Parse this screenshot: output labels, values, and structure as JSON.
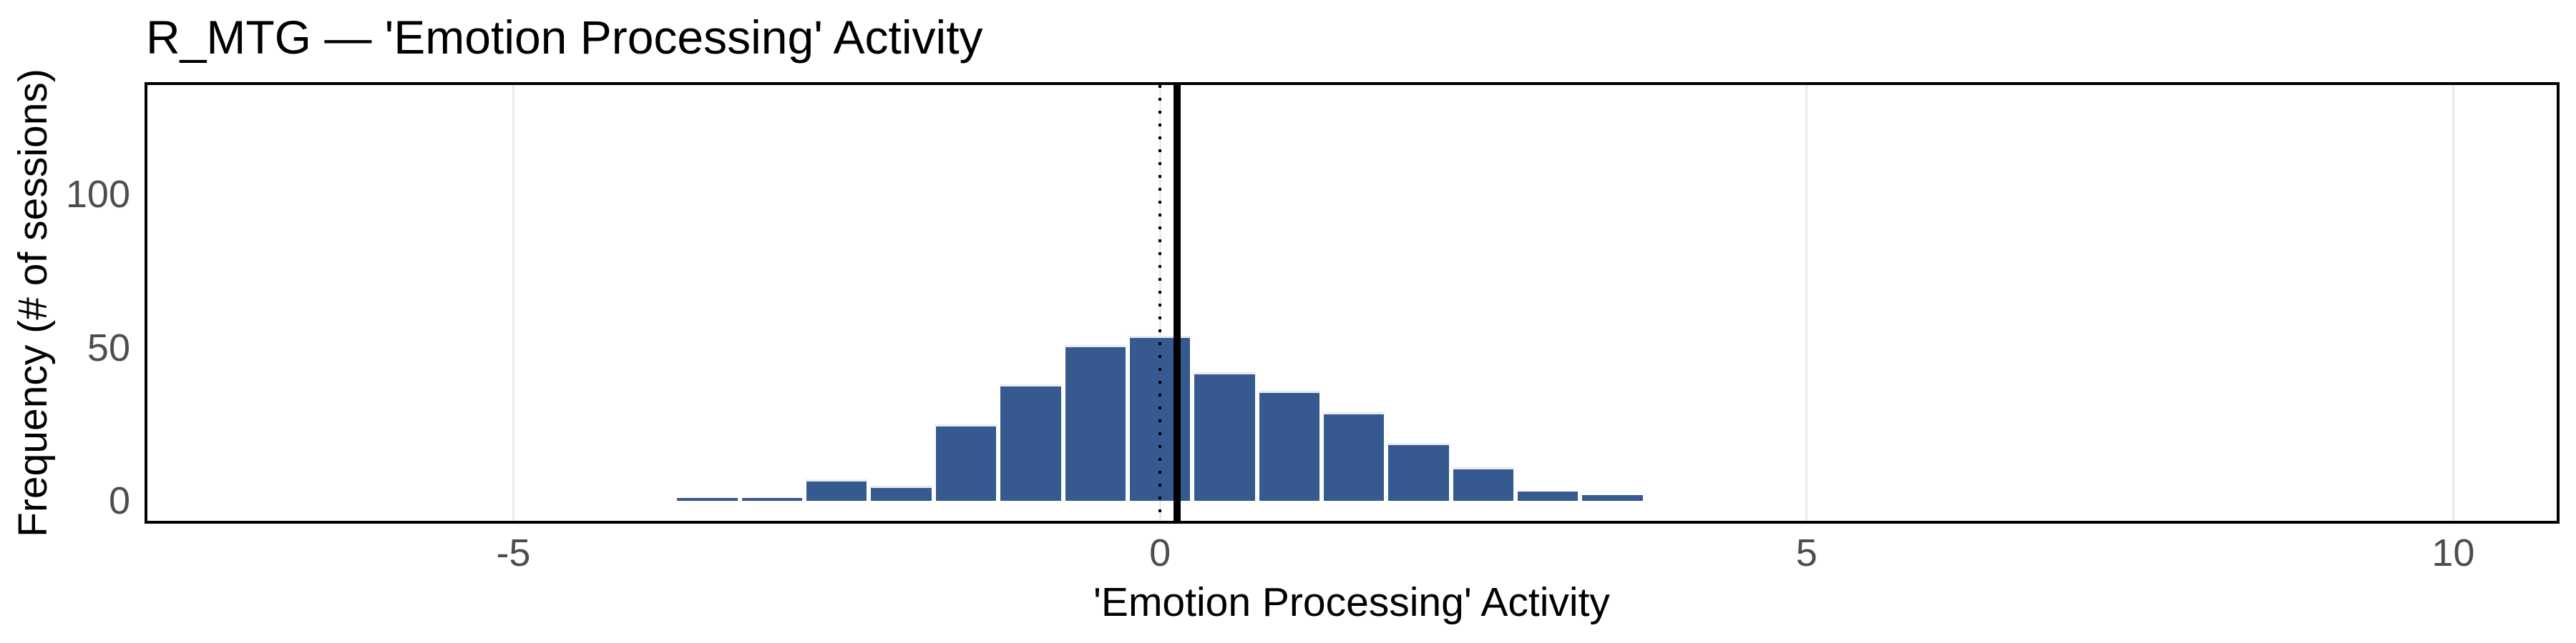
{
  "title": "R_MTG — 'Emotion Processing' Activity",
  "chart_data": {
    "type": "bar",
    "subtype": "histogram",
    "title": "R_MTG — 'Emotion Processing' Activity",
    "xlabel": "'Emotion Processing' Activity",
    "ylabel": "Frequency (# of sessions)",
    "bin_width": 0.5,
    "bin_centers": [
      -3.5,
      -3.0,
      -2.5,
      -2.0,
      -1.5,
      -1.0,
      -0.5,
      0.0,
      0.5,
      1.0,
      1.5,
      2.0,
      2.5,
      3.0,
      3.5
    ],
    "counts": [
      1,
      1,
      7,
      5,
      25,
      38,
      51,
      54,
      42,
      36,
      29,
      19,
      11,
      3,
      2
    ],
    "x_ticks": [
      -5,
      0,
      5,
      10
    ],
    "x_tick_labels": [
      "-5",
      "0",
      "5",
      "10"
    ],
    "y_ticks": [
      0,
      50,
      100
    ],
    "y_tick_labels": [
      "0",
      "50",
      "100"
    ],
    "xlim": [
      -7.83,
      10.8
    ],
    "ylim": [
      -6.5,
      135.8
    ],
    "reference_line_x": 0,
    "reference_line_style": "dotted",
    "mean_line_x": 0.13,
    "mean_line_style": "solid",
    "grid": "vertical-major-only",
    "legend": "none",
    "colors": {
      "bar_fill": "#36598f",
      "bar_border": "#ffffff",
      "bar_top_edge": "#e8ecf3",
      "grid_color": "#ebebeb",
      "axis_text": "#4d4d4d",
      "axis_line": "#000000",
      "ref_line": "#000000",
      "mean_line": "#000000",
      "background": "#ffffff"
    }
  }
}
